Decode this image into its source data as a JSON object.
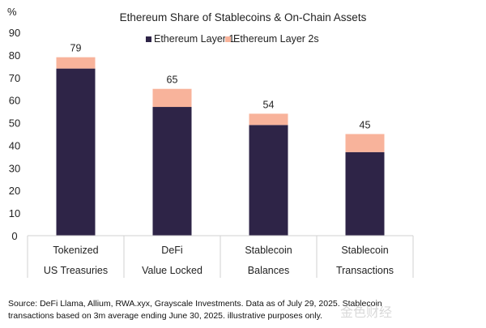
{
  "chart_data": {
    "type": "bar",
    "stacked": true,
    "title": "Ethereum Share of Stablecoins & On-Chain Assets",
    "ylabel": "%",
    "ylim": [
      0,
      90
    ],
    "yticks": [
      0,
      10,
      20,
      30,
      40,
      50,
      60,
      70,
      80,
      90
    ],
    "grid": false,
    "legend_position": "top-center",
    "categories": [
      [
        "Tokenized",
        "US Treasuries"
      ],
      [
        "DeFi",
        "Value Locked"
      ],
      [
        "Stablecoin",
        "Balances"
      ],
      [
        "Stablecoin",
        "Transactions"
      ]
    ],
    "series": [
      {
        "name": "Ethereum Layer 1",
        "color": "#2e2447",
        "values": [
          74,
          57,
          49,
          37
        ]
      },
      {
        "name": "Ethereum Layer 2s",
        "color": "#f8b39b",
        "values": [
          5,
          8,
          5,
          8
        ]
      }
    ],
    "total_labels": [
      "79",
      "65",
      "54",
      "45"
    ]
  },
  "footnote": {
    "line1": "Source: DeFi Llama, Allium, RWA.xyx, Grayscale Investments. Data as of July 29, 2025. Stablecoin",
    "line2": "transactions based on 3m average ending June 30, 2025. illustrative purposes only."
  },
  "watermark": "金色财经"
}
